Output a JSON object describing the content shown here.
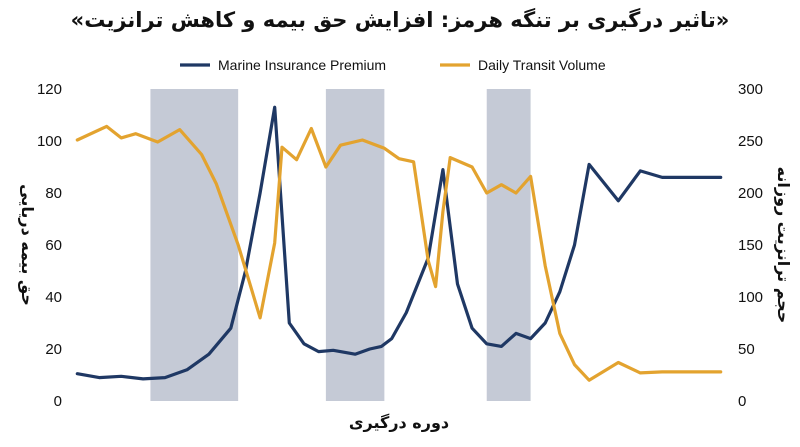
{
  "chart_data": {
    "type": "line",
    "title": "«تاثیر درگیری بر تنگه هرمز: افزایش حق بیمه و کاهش ترانزیت»",
    "xlabel": "دوره درگیری",
    "ylabel_left": "حق بیمه دریایی",
    "ylabel_right": "حجم ترانزیت روزانه",
    "ylim_left": [
      0,
      120
    ],
    "ylim_right": [
      0,
      300
    ],
    "yticks_left": [
      0,
      20,
      40,
      60,
      80,
      100,
      120
    ],
    "yticks_right": [
      0,
      50,
      100,
      150,
      200,
      250,
      300
    ],
    "legend_position": "top-center",
    "grid": false,
    "shaded_periods": [
      [
        5,
        11
      ],
      [
        17,
        21
      ],
      [
        28,
        31
      ]
    ],
    "xlim": [
      -0.5,
      44.5
    ],
    "series": [
      {
        "name": "Marine Insurance Premium",
        "axis": "left",
        "color": "#1f3864",
        "x": [
          0,
          1.5,
          3,
          4.5,
          6,
          7.5,
          9,
          10.5,
          11.5,
          12.5,
          13.5,
          14.5,
          15.5,
          16.5,
          17.5,
          19,
          20,
          20.8,
          21.5,
          22.5,
          24,
          25,
          26,
          27,
          28,
          29,
          30,
          31,
          32,
          33,
          34,
          35,
          37,
          38.5,
          40,
          42,
          44
        ],
        "values": [
          10.5,
          9,
          9.5,
          8.5,
          9,
          12,
          18,
          28,
          50,
          80,
          113,
          30,
          22,
          19,
          19.5,
          18,
          20,
          21,
          24,
          34,
          55,
          89,
          45,
          28,
          22,
          21,
          26,
          24,
          30,
          42,
          60,
          91,
          77,
          88.5,
          86,
          86,
          86
        ]
      },
      {
        "name": "Daily Transit Volume",
        "axis": "right",
        "color": "#e3a32f",
        "x": [
          0,
          2,
          3,
          4,
          5.5,
          7,
          8.5,
          9.5,
          11,
          12.5,
          13.5,
          14,
          15,
          16,
          17,
          18,
          19.5,
          21,
          22,
          23,
          24,
          24.5,
          25,
          25.5,
          27,
          28,
          29,
          30,
          31,
          32,
          33,
          34,
          35,
          37,
          38.5,
          40,
          42,
          44
        ],
        "values": [
          251,
          264,
          253,
          257,
          249,
          261,
          237,
          209,
          150,
          80,
          152,
          244,
          232,
          262,
          225,
          246,
          251,
          243,
          233,
          230,
          135,
          110,
          182,
          234,
          225,
          200,
          208,
          200,
          216,
          130,
          65,
          35,
          20,
          37,
          27,
          28,
          28,
          28
        ]
      }
    ]
  }
}
